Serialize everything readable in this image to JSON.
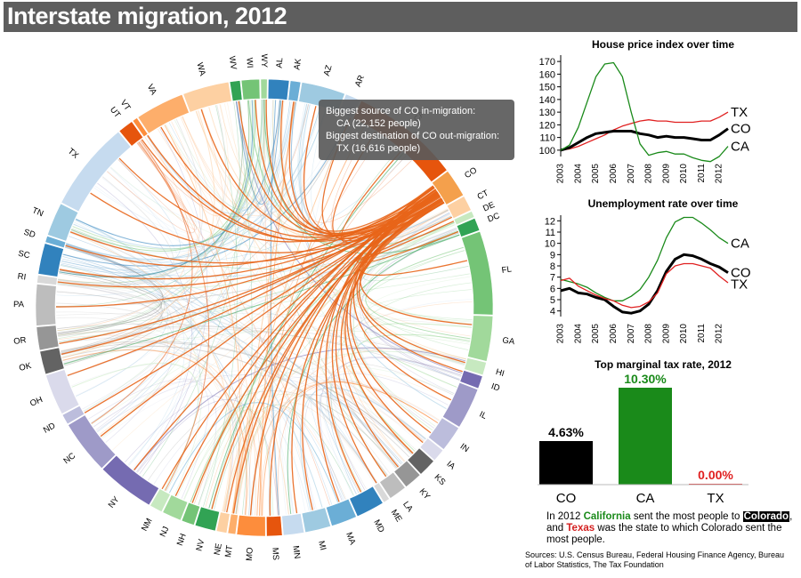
{
  "page": {
    "title": "Interstate migration, 2012",
    "tooltip_line1": "Biggest source of CO in-migration:",
    "tooltip_line2": "CA (22,152 people)",
    "tooltip_line3": "Biggest destination of CO out-migration:",
    "tooltip_line4": "TX (16,616 people)",
    "summary_pre": "In 2012 ",
    "summary_ca": "California",
    "summary_mid1": " sent the most people to ",
    "summary_co": "Colorado",
    "summary_mid2": ", and ",
    "summary_tx": "Texas",
    "summary_post": " was the state to which Colorado sent the most people.",
    "sources": "Sources: U.S. Census Bureau, Federal Housing Finance Agency, Bureau of Labor Statistics, The Tax Foundation"
  },
  "chart_data": [
    {
      "type": "chord",
      "title": "Interstate migration, 2012",
      "highlight": "CO",
      "highlight_color": "#e8651a",
      "states": [
        {
          "name": "CO",
          "size": 2.2,
          "color": "#f4a04c"
        },
        {
          "name": "CT",
          "size": 1.2,
          "color": "#fdd0a2"
        },
        {
          "name": "DE",
          "size": 0.5,
          "color": "#c7e9c0"
        },
        {
          "name": "DC",
          "size": 1.0,
          "color": "#31a354"
        },
        {
          "name": "FL",
          "size": 6.5,
          "color": "#74c476"
        },
        {
          "name": "GA",
          "size": 3.5,
          "color": "#a1d99b"
        },
        {
          "name": "HI",
          "size": 1.0,
          "color": "#c7e9c0"
        },
        {
          "name": "ID",
          "size": 1.0,
          "color": "#756bb1"
        },
        {
          "name": "IL",
          "size": 3.2,
          "color": "#9e9ac8"
        },
        {
          "name": "IN",
          "size": 2.0,
          "color": "#bcbddc"
        },
        {
          "name": "IA",
          "size": 1.0,
          "color": "#dadaeb"
        },
        {
          "name": "KS",
          "size": 1.4,
          "color": "#636363"
        },
        {
          "name": "KY",
          "size": 1.4,
          "color": "#969696"
        },
        {
          "name": "LA",
          "size": 1.4,
          "color": "#bdbdbd"
        },
        {
          "name": "ME",
          "size": 0.5,
          "color": "#d9d9d9"
        },
        {
          "name": "MD",
          "size": 2.2,
          "color": "#3182bd"
        },
        {
          "name": "MA",
          "size": 2.0,
          "color": "#6baed6"
        },
        {
          "name": "MI",
          "size": 2.0,
          "color": "#9ecae1"
        },
        {
          "name": "MN",
          "size": 1.6,
          "color": "#c6dbef"
        },
        {
          "name": "MS",
          "size": 1.2,
          "color": "#e6550d"
        },
        {
          "name": "MO",
          "size": 2.2,
          "color": "#fd8d3c"
        },
        {
          "name": "MT",
          "size": 0.6,
          "color": "#fdae6b"
        },
        {
          "name": "NE",
          "size": 0.8,
          "color": "#fdd0a2"
        },
        {
          "name": "NV",
          "size": 1.6,
          "color": "#31a354"
        },
        {
          "name": "NH",
          "size": 1.0,
          "color": "#74c476"
        },
        {
          "name": "NJ",
          "size": 1.5,
          "color": "#a1d99b"
        },
        {
          "name": "NM",
          "size": 1.0,
          "color": "#c7e9c0"
        },
        {
          "name": "NY",
          "size": 4.5,
          "color": "#756bb1"
        },
        {
          "name": "NC",
          "size": 4.2,
          "color": "#9e9ac8"
        },
        {
          "name": "ND",
          "size": 0.8,
          "color": "#bcbddc"
        },
        {
          "name": "OH",
          "size": 3.2,
          "color": "#dadaeb"
        },
        {
          "name": "OK",
          "size": 1.8,
          "color": "#636363"
        },
        {
          "name": "OR",
          "size": 1.8,
          "color": "#969696"
        },
        {
          "name": "PA",
          "size": 3.2,
          "color": "#bdbdbd"
        },
        {
          "name": "RI",
          "size": 0.6,
          "color": "#d9d9d9"
        },
        {
          "name": "SC",
          "size": 2.4,
          "color": "#3182bd"
        },
        {
          "name": "SD",
          "size": 0.5,
          "color": "#6baed6"
        },
        {
          "name": "TN",
          "size": 2.6,
          "color": "#9ecae1"
        },
        {
          "name": "TX",
          "size": 7.0,
          "color": "#c6dbef"
        },
        {
          "name": "UT",
          "size": 1.2,
          "color": "#e6550d"
        },
        {
          "name": "VT",
          "size": 0.4,
          "color": "#fd8d3c"
        },
        {
          "name": "VA",
          "size": 3.8,
          "color": "#fdae6b"
        },
        {
          "name": "WA",
          "size": 3.6,
          "color": "#fdd0a2"
        },
        {
          "name": "WV",
          "size": 0.8,
          "color": "#31a354"
        },
        {
          "name": "WI",
          "size": 1.4,
          "color": "#74c476"
        },
        {
          "name": "WY",
          "size": 0.5,
          "color": "#a1d99b"
        },
        {
          "name": "AL",
          "size": 1.6,
          "color": "#3182bd"
        },
        {
          "name": "AK",
          "size": 0.8,
          "color": "#6baed6"
        },
        {
          "name": "AZ",
          "size": 3.4,
          "color": "#9ecae1"
        },
        {
          "name": "AR",
          "size": 1.2,
          "color": "#c6dbef"
        },
        {
          "name": "CA",
          "size": 8.5,
          "color": "#e6550d"
        }
      ]
    },
    {
      "type": "line",
      "title": "House price index over time",
      "x": [
        2003,
        2003.5,
        2004,
        2004.5,
        2005,
        2005.5,
        2006,
        2006.5,
        2007,
        2007.5,
        2008,
        2008.5,
        2009,
        2009.5,
        2010,
        2010.5,
        2011,
        2011.5,
        2012,
        2012.5
      ],
      "xticks": [
        "2003",
        "2004",
        "2005",
        "2006",
        "2007",
        "2008",
        "2009",
        "2010",
        "2011",
        "2012"
      ],
      "ylim": [
        95,
        175
      ],
      "yticks": [
        100,
        110,
        120,
        130,
        140,
        150,
        160,
        170
      ],
      "series": [
        {
          "name": "TX",
          "color": "#e02020",
          "width": 1.3,
          "values": [
            100,
            101,
            103,
            106,
            109,
            112,
            116,
            119,
            121,
            123,
            124,
            123,
            123,
            122,
            122,
            122,
            123,
            123,
            126,
            130
          ]
        },
        {
          "name": "CO",
          "color": "#000000",
          "width": 3,
          "values": [
            100,
            102,
            106,
            110,
            113,
            114,
            115,
            115,
            115,
            113,
            112,
            110,
            111,
            110,
            110,
            109,
            108,
            108,
            112,
            117
          ]
        },
        {
          "name": "CA",
          "color": "#1a8a1a",
          "width": 1.3,
          "values": [
            100,
            104,
            118,
            138,
            158,
            168,
            169,
            158,
            130,
            105,
            96,
            98,
            99,
            97,
            97,
            94,
            92,
            91,
            95,
            103
          ]
        }
      ]
    },
    {
      "type": "line",
      "title": "Unemployment rate over time",
      "x": [
        2003,
        2003.5,
        2004,
        2004.5,
        2005,
        2005.5,
        2006,
        2006.5,
        2007,
        2007.5,
        2008,
        2008.5,
        2009,
        2009.5,
        2010,
        2010.5,
        2011,
        2011.5,
        2012,
        2012.5
      ],
      "xticks": [
        "2003",
        "2004",
        "2005",
        "2006",
        "2007",
        "2008",
        "2009",
        "2010",
        "2011",
        "2012"
      ],
      "ylim": [
        3.5,
        12.5
      ],
      "yticks": [
        4,
        5,
        6,
        7,
        8,
        9,
        10,
        11,
        12
      ],
      "series": [
        {
          "name": "CA",
          "color": "#1a8a1a",
          "width": 1.3,
          "values": [
            6.8,
            6.6,
            6.4,
            6.1,
            5.6,
            5.2,
            4.9,
            4.9,
            5.3,
            5.9,
            7.0,
            8.5,
            10.5,
            11.9,
            12.3,
            12.3,
            11.8,
            11.2,
            10.5,
            10.0
          ]
        },
        {
          "name": "CO",
          "color": "#000000",
          "width": 3,
          "values": [
            5.8,
            6.0,
            5.6,
            5.5,
            5.2,
            5.0,
            4.4,
            3.9,
            3.8,
            4.0,
            4.6,
            5.8,
            7.5,
            8.6,
            9.0,
            8.9,
            8.6,
            8.2,
            7.9,
            7.4
          ]
        },
        {
          "name": "TX",
          "color": "#e02020",
          "width": 1.3,
          "values": [
            6.7,
            6.9,
            6.2,
            5.8,
            5.4,
            5.1,
            4.9,
            4.5,
            4.3,
            4.4,
            4.8,
            5.6,
            7.3,
            8.0,
            8.2,
            8.2,
            8.0,
            7.8,
            7.1,
            6.5
          ]
        }
      ]
    },
    {
      "type": "bar",
      "title": "Top marginal tax rate, 2012",
      "categories": [
        "CO",
        "CA",
        "TX"
      ],
      "values": [
        4.63,
        10.3,
        0.0
      ],
      "labels": [
        "4.63%",
        "10.30%",
        "0.00%"
      ],
      "colors": [
        "#000000",
        "#1a8a1a",
        "#e02020"
      ],
      "ylim": [
        0,
        10.3
      ]
    }
  ]
}
